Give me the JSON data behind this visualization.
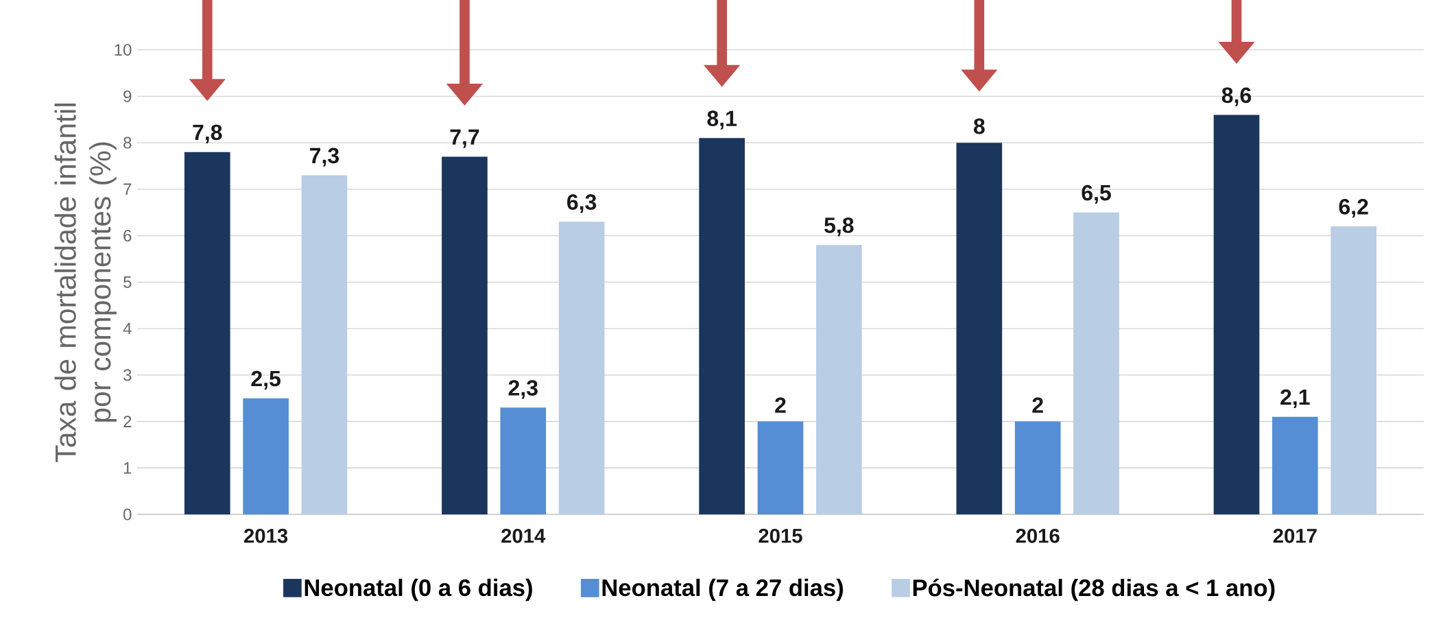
{
  "chart_data": {
    "type": "bar",
    "ylabel": "Taxa de mortalidade infantil por componentes (%)",
    "categories": [
      "2013",
      "2014",
      "2015",
      "2016",
      "2017"
    ],
    "series": [
      {
        "name": "Neonatal (0 a 6 dias)",
        "color": "#1b365d",
        "values": [
          7.8,
          7.7,
          8.1,
          8,
          8.6
        ]
      },
      {
        "name": "Neonatal (7 a 27 dias)",
        "color": "#558ed5",
        "values": [
          2.5,
          2.3,
          2,
          2,
          2.1
        ]
      },
      {
        "name": "Pós-Neonatal (28 dias a < 1 ano)",
        "color": "#b9cde5",
        "values": [
          7.3,
          6.3,
          5.8,
          6.5,
          6.2
        ]
      }
    ],
    "value_labels": [
      [
        "7,8",
        "7,7",
        "8,1",
        "8",
        "8,6"
      ],
      [
        "2,5",
        "2,3",
        "2",
        "2",
        "2,1"
      ],
      [
        "7,3",
        "6,3",
        "5,8",
        "6,5",
        "6,2"
      ]
    ],
    "ylim": [
      0,
      10
    ],
    "yticks": [
      0,
      1,
      2,
      3,
      4,
      5,
      6,
      7,
      8,
      9,
      10
    ],
    "grid": "y",
    "legend": "bottom"
  }
}
